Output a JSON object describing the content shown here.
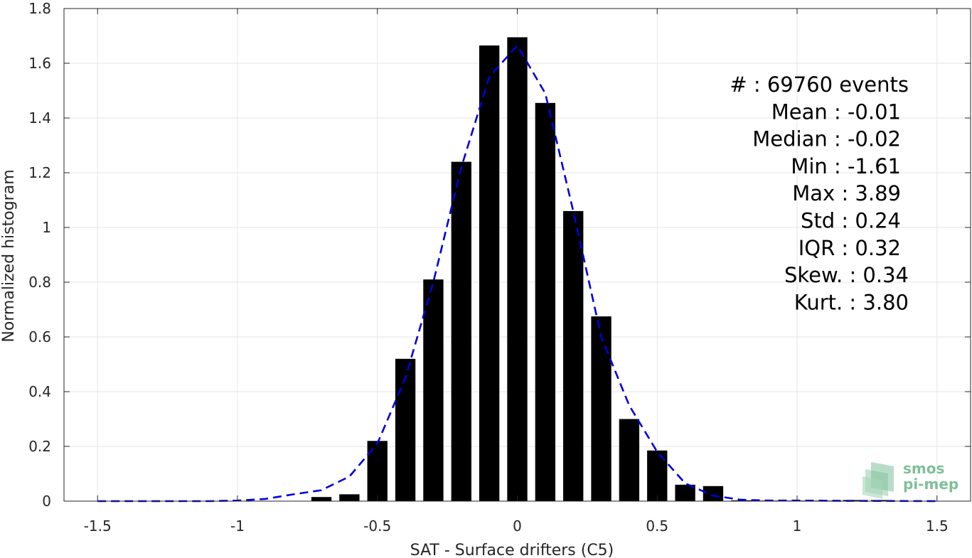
{
  "chart_data": {
    "type": "bar",
    "xlabel": "SAT - Surface drifters (C5)",
    "ylabel": "Normalized histogram",
    "xlim": [
      -1.62,
      1.62
    ],
    "ylim": [
      0,
      1.8
    ],
    "xticks": [
      -1.5,
      -1,
      -0.5,
      0,
      0.5,
      1,
      1.5
    ],
    "xtick_labels": [
      "-1.5",
      "-1",
      "-0.5",
      "0",
      "0.5",
      "1",
      "1.5"
    ],
    "yticks": [
      0,
      0.2,
      0.4,
      0.6,
      0.8,
      1,
      1.2,
      1.4,
      1.6,
      1.8
    ],
    "ytick_labels": [
      "0",
      "0.2",
      "0.4",
      "0.6",
      "0.8",
      "1",
      "1.2",
      "1.4",
      "1.6",
      "1.8"
    ],
    "grid": true,
    "bar_color": "#000000",
    "bins": [
      -0.7,
      -0.6,
      -0.5,
      -0.4,
      -0.3,
      -0.2,
      -0.1,
      0,
      0.1,
      0.2,
      0.3,
      0.4,
      0.5,
      0.6,
      0.7,
      0.8,
      0.9,
      1.0,
      1.1,
      1.2,
      1.3
    ],
    "values": [
      0.015,
      0.025,
      0.22,
      0.52,
      0.81,
      1.24,
      1.665,
      1.695,
      1.455,
      1.06,
      0.675,
      0.3,
      0.185,
      0.06,
      0.055,
      0.003,
      0.002,
      0.002,
      0.002,
      0.004,
      0.004
    ],
    "fit_curve": {
      "style": "dashed",
      "color": "#0000dd",
      "x": [
        -1.5,
        -1.3,
        -1.1,
        -1.0,
        -0.9,
        -0.8,
        -0.7,
        -0.6,
        -0.5,
        -0.4,
        -0.3,
        -0.2,
        -0.1,
        0,
        0.1,
        0.2,
        0.3,
        0.4,
        0.5,
        0.6,
        0.7,
        0.8,
        0.9,
        1.0,
        1.2,
        1.5
      ],
      "y": [
        0,
        0,
        0,
        0.002,
        0.008,
        0.025,
        0.04,
        0.09,
        0.21,
        0.45,
        0.8,
        1.22,
        1.55,
        1.665,
        1.49,
        1.06,
        0.6,
        0.35,
        0.18,
        0.065,
        0.02,
        0.005,
        0.002,
        0.002,
        0.001,
        0
      ]
    }
  },
  "stats": [
    {
      "label": "#  : 69760 events"
    },
    {
      "label": "Mean : -0.01"
    },
    {
      "label": "Median : -0.02"
    },
    {
      "label": "Min : -1.61"
    },
    {
      "label": "Max : 3.89"
    },
    {
      "label": "Std : 0.24"
    },
    {
      "label": "IQR : 0.32"
    },
    {
      "label": "Skew. : 0.34"
    },
    {
      "label": "Kurt. : 3.80"
    }
  ],
  "logo": {
    "line1": "smos",
    "line2": "pi-mep",
    "color": "#7fbf9a"
  }
}
